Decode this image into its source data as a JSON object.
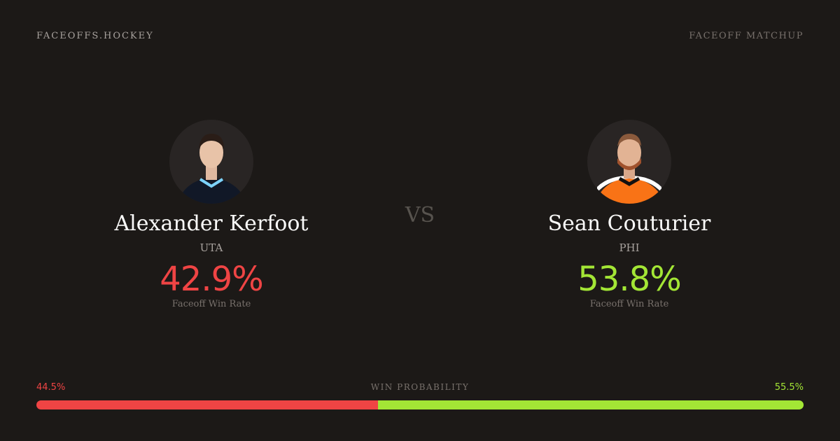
{
  "header": {
    "brand": "FACEOFFS.HOCKEY",
    "page_type": "FACEOFF MATCHUP"
  },
  "colors": {
    "left": "#ef4444",
    "right": "#a3e635",
    "background": "#1c1917"
  },
  "vs_label": "VS",
  "players": [
    {
      "name": "Alexander Kerfoot",
      "team": "UTA",
      "win_rate": "42.9%",
      "win_rate_label": "Faceoff Win Rate",
      "jersey_color": "#111827",
      "trim_color": "#7dd3fc"
    },
    {
      "name": "Sean Couturier",
      "team": "PHI",
      "win_rate": "53.8%",
      "win_rate_label": "Faceoff Win Rate",
      "jersey_color": "#f97316",
      "trim_color": "#ffffff"
    }
  ],
  "win_probability": {
    "label": "WIN PROBABILITY",
    "left": "44.5%",
    "right": "55.5%",
    "left_value": 44.5,
    "right_value": 55.5
  }
}
